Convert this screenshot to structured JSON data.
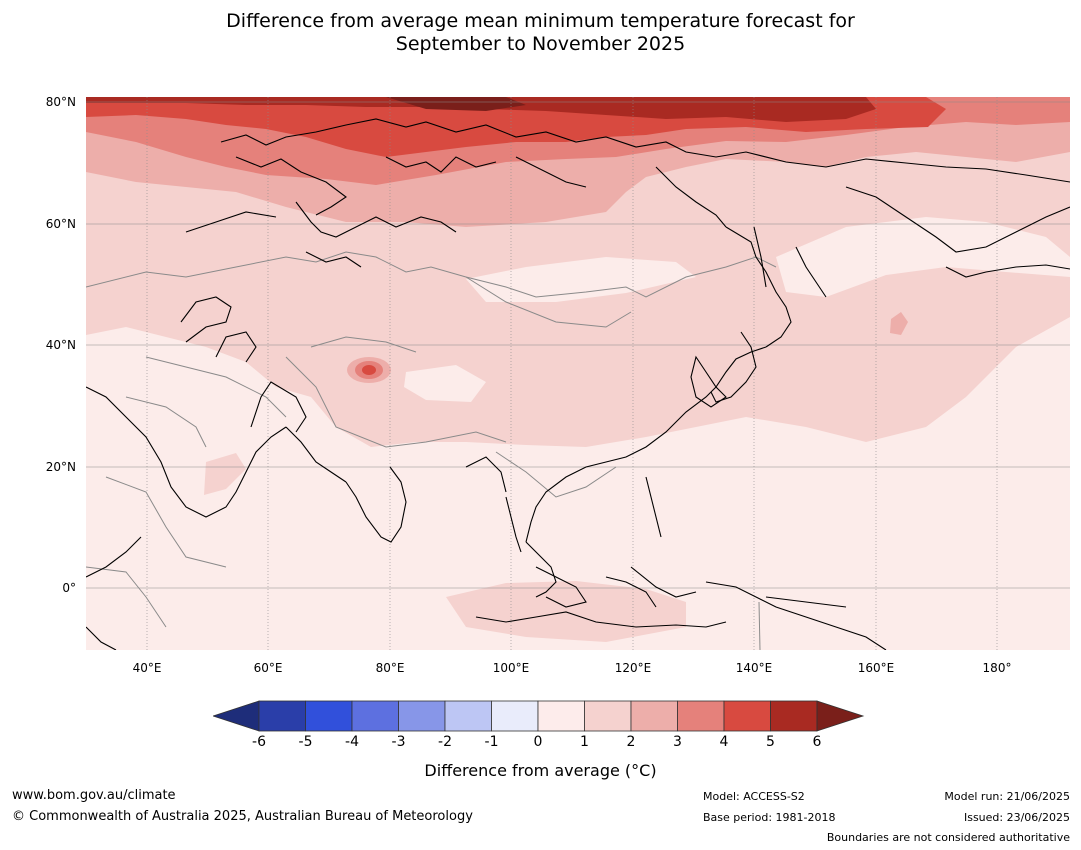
{
  "title_line1": "Difference from average mean minimum temperature forecast for",
  "title_line2": "September to November 2025",
  "lat_labels": [
    "80°N",
    "60°N",
    "40°N",
    "20°N",
    "0°"
  ],
  "lon_labels": [
    "40°E",
    "60°E",
    "80°E",
    "100°E",
    "120°E",
    "140°E",
    "160°E",
    "180°"
  ],
  "map": {
    "lon_range": [
      30,
      192
    ],
    "lat_range": [
      -10,
      81
    ],
    "gridlines": true,
    "background_color": "#fcecea",
    "coastline_color": "#000000",
    "boundary_color": "#8a8a8a"
  },
  "colorbar": {
    "ticks": [
      "-6",
      "-5",
      "-4",
      "-3",
      "-2",
      "-1",
      "0",
      "1",
      "2",
      "3",
      "4",
      "5",
      "6"
    ],
    "under_color": "#1e2d7a",
    "over_color": "#7a1f1a",
    "colors": [
      "#2a3ea9",
      "#3150db",
      "#5d70e0",
      "#8796e8",
      "#bdc6f4",
      "#e9ecfb",
      "#fdeceb",
      "#f5d2cf",
      "#edaeaa",
      "#e5817b",
      "#d84a40",
      "#a92a22"
    ],
    "label": "Difference from average (°C)"
  },
  "footer": {
    "url": "www.bom.gov.au/climate",
    "copyright": "© Commonwealth of Australia 2025, Australian Bureau of Meteorology",
    "model": "Model: ACCESS-S2",
    "base_period": "Base period: 1981-2018",
    "model_run": "Model run: 21/06/2025",
    "issued": "Issued: 23/06/2025",
    "disclaimer": "Boundaries are not considered authoritative"
  }
}
